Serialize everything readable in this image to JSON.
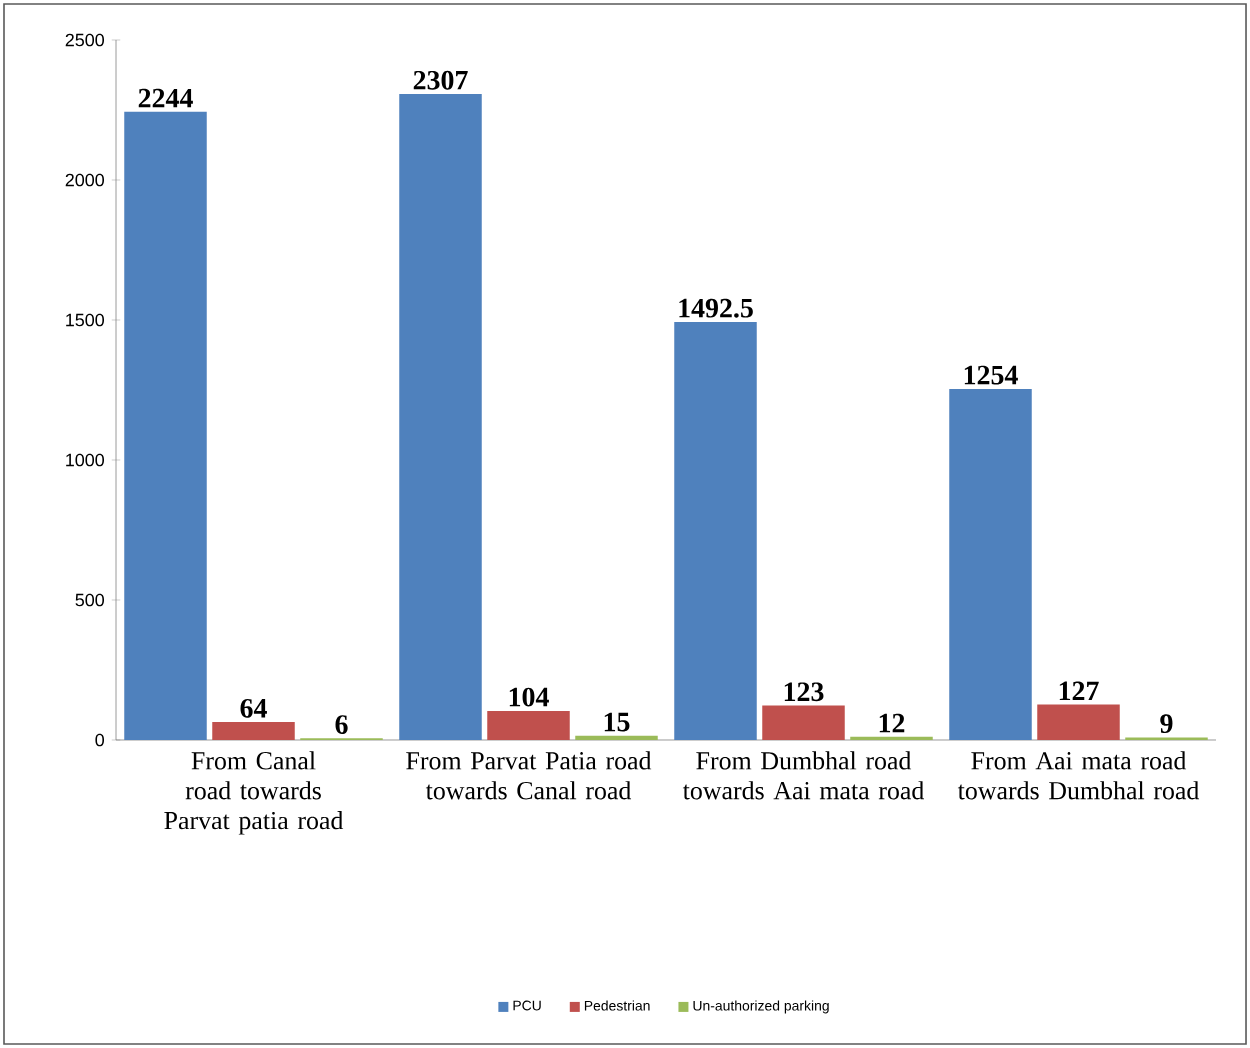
{
  "chart_data": {
    "type": "bar",
    "categories": [
      "From Canal road towards Parvat patia road",
      "From Parvat Patia road towards Canal road",
      "From Dumbhal road towards Aai mata road",
      "From Aai mata road towards Dumbhal road"
    ],
    "series": [
      {
        "name": "PCU",
        "color": "#4f81bd",
        "values": [
          2244,
          2307,
          1492.5,
          1254
        ]
      },
      {
        "name": "Pedestrian",
        "color": "#c0504d",
        "values": [
          64,
          104,
          123,
          127
        ]
      },
      {
        "name": "Un-authorized parking",
        "color": "#9bbb59",
        "values": [
          6,
          15,
          12,
          9
        ]
      }
    ],
    "ylim": [
      0,
      2500
    ],
    "yticks": [
      0,
      500,
      1000,
      1500,
      2000,
      2500
    ],
    "data_labels": true,
    "legend": "bottom"
  }
}
